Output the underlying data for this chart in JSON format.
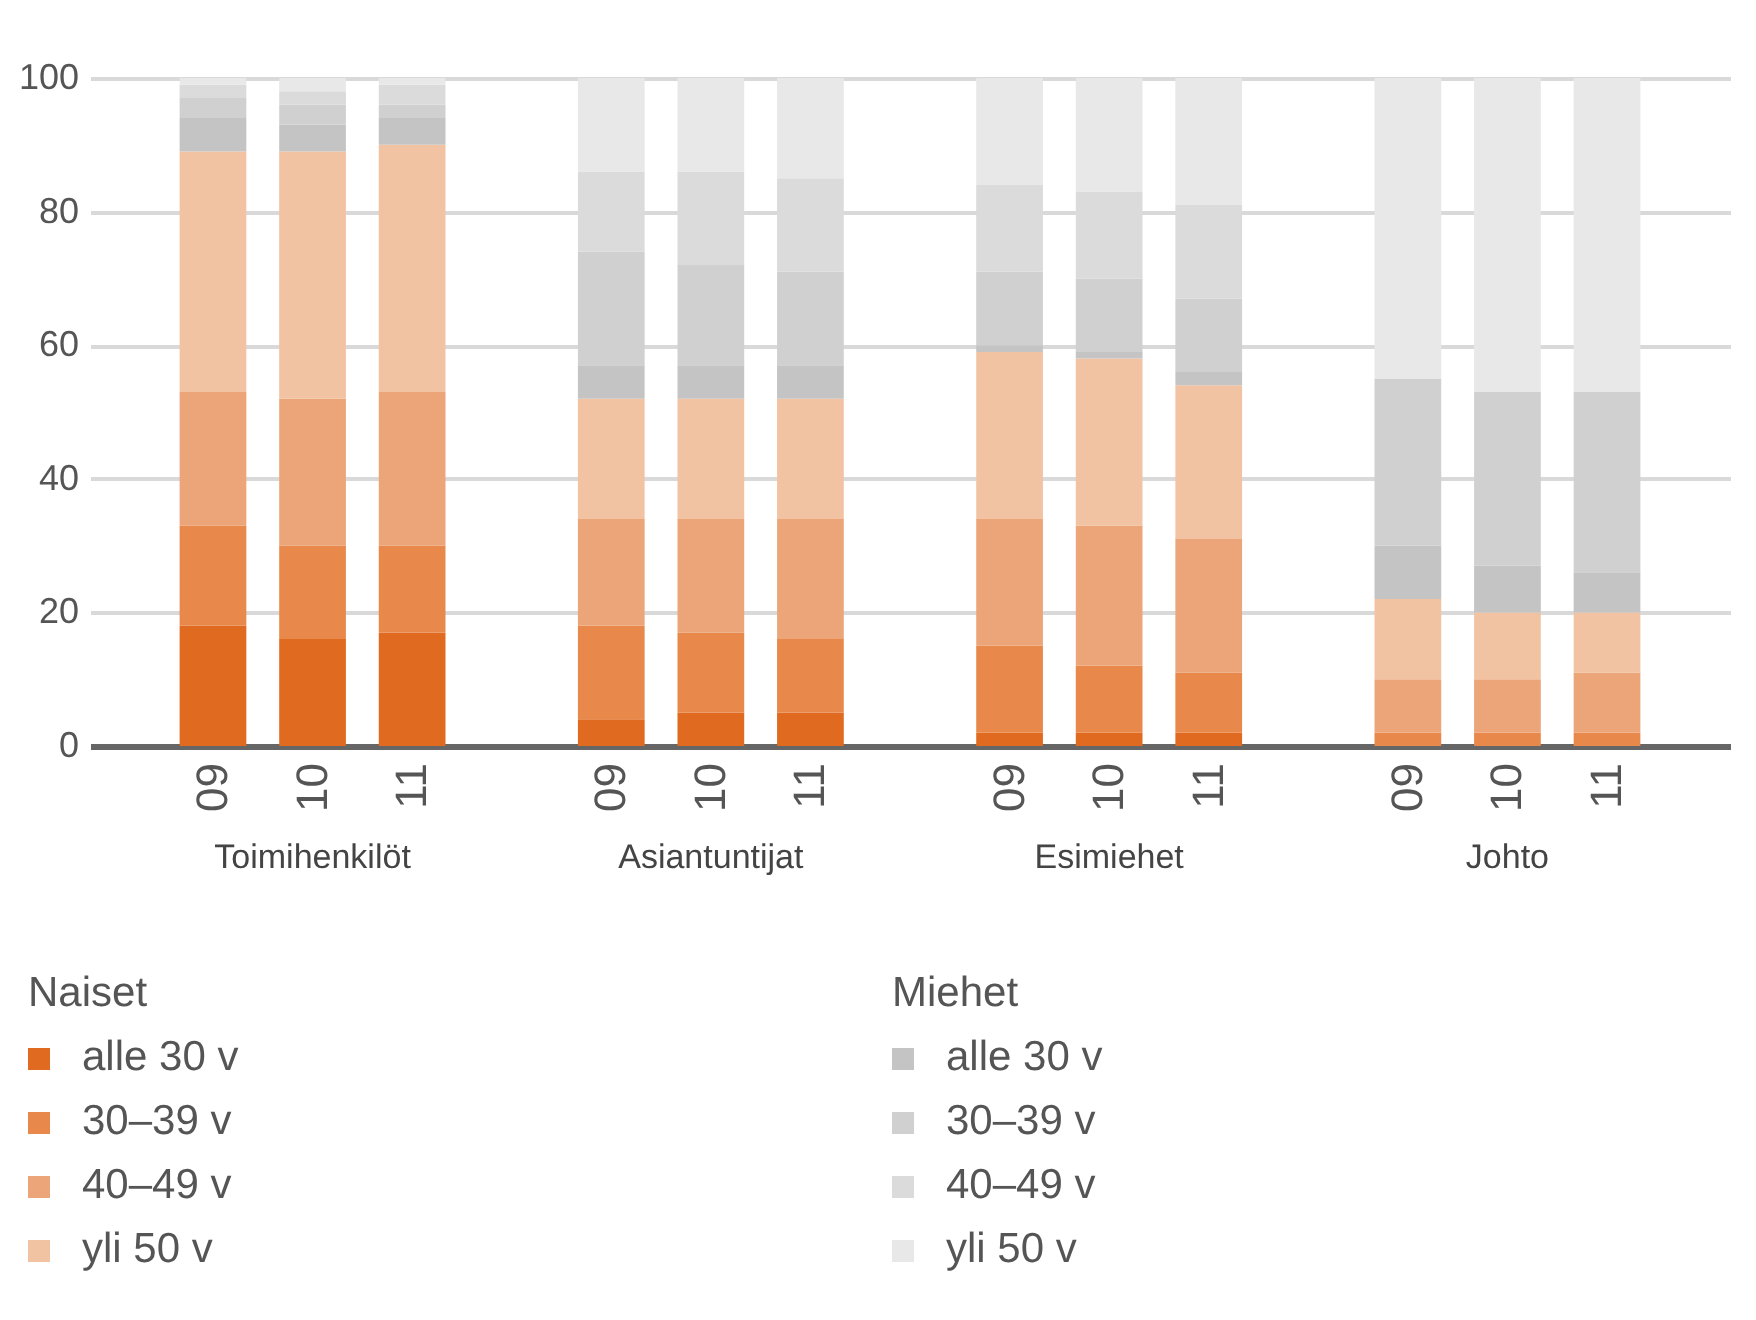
{
  "chart_data": {
    "type": "bar",
    "stacked": true,
    "categories": [
      "09",
      "10",
      "11",
      "09",
      "10",
      "11",
      "09",
      "10",
      "11",
      "09",
      "10",
      "11"
    ],
    "series": [
      {
        "name": "alle 30 v",
        "color": "#e06a20",
        "values": [
          18,
          16,
          17,
          4,
          5,
          5,
          2,
          2,
          2,
          0,
          0,
          0
        ]
      },
      {
        "name": "30–39 v",
        "color": "#e8884a",
        "values": [
          15,
          14,
          13,
          14,
          12,
          11,
          13,
          10,
          9,
          2,
          2,
          2
        ]
      },
      {
        "name": "40–49 v",
        "color": "#eca578",
        "values": [
          20,
          22,
          23,
          16,
          17,
          18,
          19,
          21,
          20,
          8,
          8,
          9
        ]
      },
      {
        "name": "yli 50 v",
        "color": "#f2c3a3",
        "values": [
          36,
          37,
          37,
          18,
          18,
          18,
          25,
          25,
          23,
          12,
          10,
          9
        ]
      },
      {
        "name": "alle 30 v",
        "color": "#c4c4c4",
        "values": [
          5,
          4,
          4,
          5,
          5,
          5,
          1,
          1,
          2,
          8,
          7,
          6
        ]
      },
      {
        "name": "30–39 v",
        "color": "#d0d0d0",
        "values": [
          3,
          3,
          2,
          17,
          15,
          14,
          11,
          11,
          11,
          25,
          26,
          27
        ]
      },
      {
        "name": "40–49 v",
        "color": "#dbdbdb",
        "values": [
          2,
          2,
          3,
          12,
          14,
          14,
          13,
          13,
          14,
          0,
          0,
          0
        ]
      },
      {
        "name": "yli 50 v",
        "color": "#e8e8e8",
        "values": [
          1,
          2,
          1,
          14,
          14,
          15,
          16,
          17,
          19,
          45,
          47,
          47
        ]
      }
    ],
    "ylim": [
      0,
      100
    ],
    "yticks": [
      0,
      20,
      40,
      60,
      80,
      100
    ],
    "grid": "y",
    "legend": "bottom",
    "annotations": [
      "Toimihenkilöt",
      "Asiantuntijat",
      "Esimiehet",
      "Johto",
      "Naiset",
      "Miehet"
    ]
  }
}
